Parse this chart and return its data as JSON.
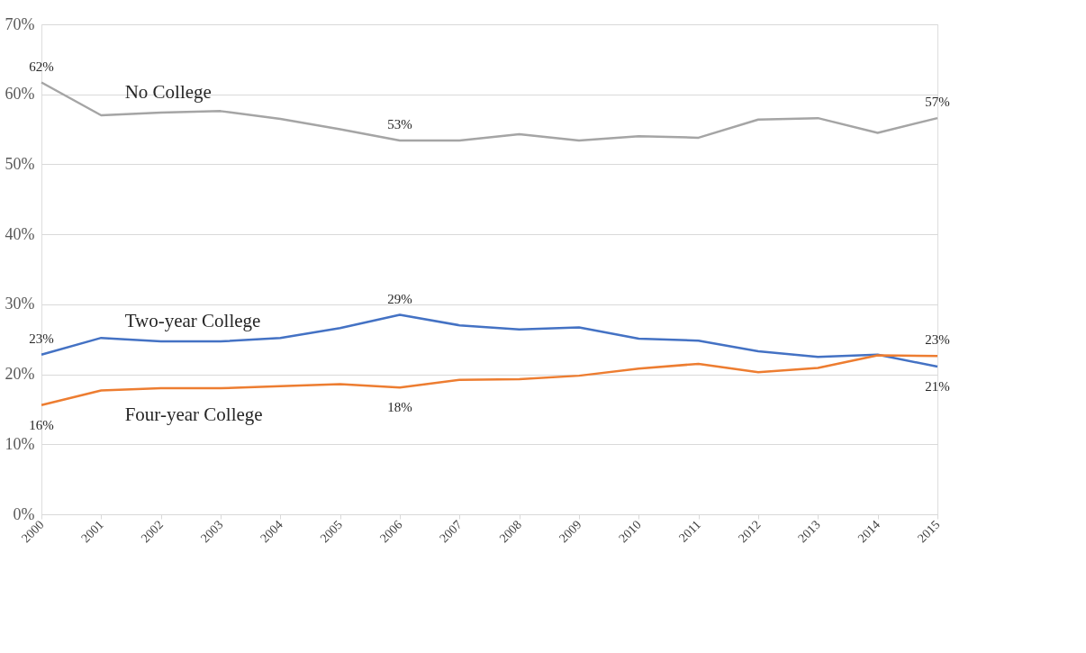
{
  "chart_data": {
    "type": "line",
    "categories": [
      "2000",
      "2001",
      "2002",
      "2003",
      "2004",
      "2005",
      "2006",
      "2007",
      "2008",
      "2009",
      "2010",
      "2011",
      "2012",
      "2013",
      "2014",
      "2015"
    ],
    "series": [
      {
        "name": "No College",
        "color": "#a5a5a5",
        "values": [
          61.7,
          57.0,
          57.4,
          57.6,
          56.5,
          55.0,
          53.4,
          53.4,
          54.3,
          53.4,
          54.0,
          53.8,
          56.4,
          56.6,
          54.5,
          56.6
        ],
        "value_labels": [
          "62%",
          null,
          null,
          null,
          null,
          null,
          "53%",
          null,
          null,
          null,
          null,
          null,
          null,
          null,
          null,
          "57%"
        ]
      },
      {
        "name": "Two-year College",
        "color": "#4472c4",
        "values": [
          22.8,
          25.2,
          24.7,
          24.7,
          25.2,
          26.6,
          28.5,
          27.0,
          26.4,
          26.7,
          25.1,
          24.8,
          23.3,
          22.5,
          22.8,
          21.1
        ],
        "value_labels": [
          "23%",
          null,
          null,
          null,
          null,
          null,
          "29%",
          null,
          null,
          null,
          null,
          null,
          null,
          null,
          null,
          "21%"
        ]
      },
      {
        "name": "Four-year College",
        "color": "#ed7d31",
        "values": [
          15.6,
          17.7,
          18.0,
          18.0,
          18.3,
          18.6,
          18.1,
          19.2,
          19.3,
          19.8,
          20.8,
          21.5,
          20.3,
          20.9,
          22.7,
          22.6
        ],
        "value_labels": [
          "16%",
          null,
          null,
          null,
          null,
          null,
          "18%",
          null,
          null,
          null,
          null,
          null,
          null,
          null,
          null,
          "23%"
        ]
      }
    ],
    "ylim": [
      0,
      70
    ],
    "yticks": [
      {
        "value": 0,
        "label": "0%"
      },
      {
        "value": 10,
        "label": "10%"
      },
      {
        "value": 20,
        "label": "20%"
      },
      {
        "value": 30,
        "label": "30%"
      },
      {
        "value": 40,
        "label": "40%"
      },
      {
        "value": 50,
        "label": "50%"
      },
      {
        "value": 60,
        "label": "60%"
      },
      {
        "value": 70,
        "label": "70%"
      }
    ],
    "grid": "y",
    "marker": "none",
    "line_style": "solid"
  }
}
